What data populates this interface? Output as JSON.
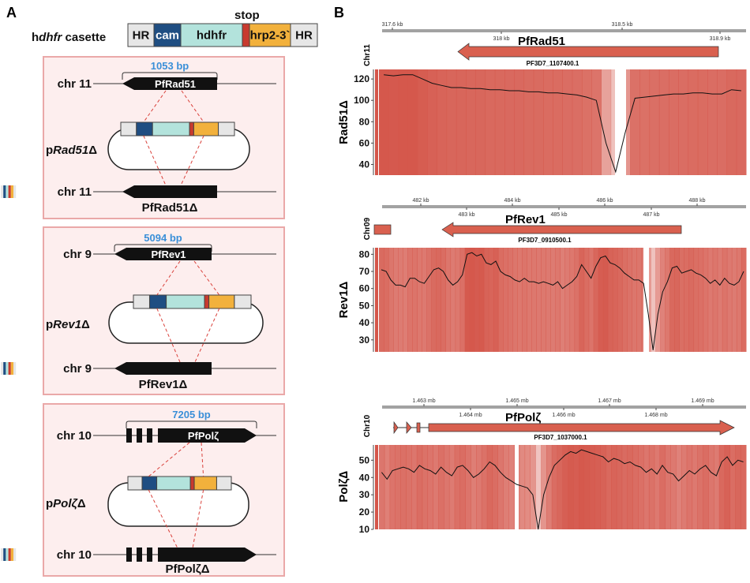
{
  "panel_a": {
    "letter": "A",
    "cassette": {
      "label_prefix": "h",
      "label_italic": "dhfr",
      "label_suffix": " casette",
      "stop_label": "stop",
      "segments": [
        {
          "label": "HR",
          "color": "#e6e6e6"
        },
        {
          "label": "cam",
          "color": "#1f4e82"
        },
        {
          "label": "hdhfr",
          "color": "#b3e3dc"
        },
        {
          "label": "",
          "color": "#c83a2e"
        },
        {
          "label": "hrp2-3`",
          "color": "#f2b13c"
        },
        {
          "label": "HR",
          "color": "#e6e6e6"
        }
      ]
    },
    "boxes": [
      {
        "size": "1053 bp",
        "chr": "chr 11",
        "gene": "PfRad51",
        "plasmid_prefix": "p",
        "plasmid_italic": "Rad51",
        "plasmid_suffix": "Δ",
        "result": "PfRad51Δ"
      },
      {
        "size": "5094 bp",
        "chr": "chr 9",
        "gene": "PfRev1",
        "plasmid_prefix": "p",
        "plasmid_italic": "Rev1",
        "plasmid_suffix": "Δ",
        "result": "PfRev1Δ"
      },
      {
        "size": "7205 bp",
        "chr": "chr 10",
        "gene": "PfPolζ",
        "plasmid_prefix": "p",
        "plasmid_italic": "Polζ",
        "plasmid_suffix": "Δ",
        "result": "PfPolζΔ"
      }
    ],
    "colors": {
      "box_fill": "#fdeeee",
      "box_stroke": "#eaa8a8",
      "size_label": "#3a8fd8",
      "dash": "#d9403a"
    }
  },
  "panel_b": {
    "letter": "B",
    "gene_color": "#d9604f",
    "coverage_color": "#d4564a"
  },
  "chart_data": [
    {
      "type": "line",
      "chromosome": "Chr11",
      "gene": "PfRad51",
      "gene_id": "PF3D7_1107400.1",
      "ylabel": "Rad51Δ",
      "top_ticks": [
        "317.6 kb",
        "318.5 kb"
      ],
      "bottom_ticks": [
        "318 kb",
        "318.9 kb"
      ],
      "yticks": [
        40,
        60,
        80,
        100,
        120
      ],
      "ylim": [
        30,
        126
      ],
      "values": [
        124,
        123,
        124,
        124,
        120,
        116,
        114,
        112,
        112,
        111,
        111,
        110,
        110,
        109,
        109,
        108,
        108,
        107,
        107,
        106,
        105,
        103,
        100,
        60,
        33,
        70,
        102,
        103,
        104,
        105,
        106,
        106,
        107,
        107,
        106,
        106,
        110,
        109
      ]
    },
    {
      "type": "line",
      "chromosome": "Chr09",
      "gene": "PfRev1",
      "gene_id": "PF3D7_0910500.1",
      "ylabel": "Rev1Δ",
      "top_ticks": [
        "482 kb",
        "484 kb",
        "486 kb",
        "488 kb"
      ],
      "bottom_ticks": [
        "483 kb",
        "485 kb",
        "487 kb"
      ],
      "yticks": [
        30,
        40,
        50,
        60,
        70,
        80
      ],
      "ylim": [
        23,
        82
      ],
      "values": [
        71,
        70,
        65,
        62,
        62,
        61,
        66,
        66,
        64,
        63,
        67,
        71,
        72,
        70,
        65,
        62,
        64,
        68,
        80,
        81,
        79,
        80,
        75,
        74,
        76,
        70,
        68,
        67,
        65,
        64,
        66,
        64,
        64,
        63,
        64,
        63,
        62,
        64,
        60,
        62,
        64,
        67,
        74,
        70,
        66,
        73,
        78,
        79,
        75,
        74,
        72,
        69,
        67,
        65,
        65,
        63,
        45,
        24,
        45,
        58,
        64,
        72,
        73,
        69,
        70,
        71,
        69,
        68,
        66,
        63,
        65,
        62,
        66,
        63,
        62,
        64,
        70
      ]
    },
    {
      "type": "line",
      "chromosome": "Chr10",
      "gene": "PfPolζ",
      "gene_id": "PF3D7_1037000.1",
      "ylabel": "Polζ∆",
      "top_ticks": [
        "1.463 mb",
        "1.465 mb",
        "1.467 mb",
        "1.469 mb"
      ],
      "bottom_ticks": [
        "1.464 mb",
        "1.466 mb",
        "1.468 mb"
      ],
      "yticks": [
        10,
        20,
        30,
        40,
        50
      ],
      "ylim": [
        10,
        57
      ],
      "values": [
        43,
        39,
        44,
        45,
        46,
        45,
        43,
        47,
        45,
        44,
        42,
        46,
        43,
        41,
        46,
        47,
        44,
        40,
        42,
        45,
        49,
        47,
        43,
        40,
        38,
        36,
        35,
        34,
        30,
        10,
        30,
        40,
        47,
        50,
        53,
        55,
        54,
        56,
        55,
        54,
        53,
        52,
        49,
        51,
        50,
        48,
        49,
        47,
        46,
        43,
        45,
        42,
        47,
        43,
        42,
        38,
        41,
        44,
        42,
        45,
        47,
        43,
        41,
        49,
        52,
        47,
        50,
        49
      ]
    }
  ]
}
